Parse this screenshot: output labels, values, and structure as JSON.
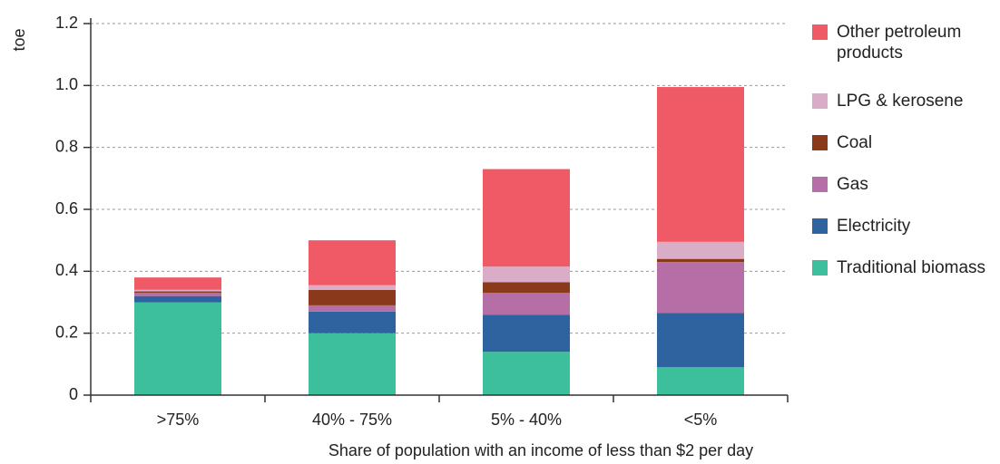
{
  "chart_data": {
    "type": "stacked_bar",
    "y_label": "toe",
    "x_label": "Share of population with an income of less than $2 per day",
    "categories": [
      ">75%",
      "40% - 75%",
      "5% - 40%",
      "<5%"
    ],
    "series": [
      {
        "name": "Traditional biomass",
        "color": "#3dbf9c",
        "values": [
          0.3,
          0.2,
          0.14,
          0.09
        ]
      },
      {
        "name": "Electricity",
        "color": "#2e63a0",
        "values": [
          0.02,
          0.07,
          0.12,
          0.175
        ]
      },
      {
        "name": "Gas",
        "color": "#b56fa6",
        "values": [
          0.01,
          0.02,
          0.07,
          0.165
        ]
      },
      {
        "name": "Coal",
        "color": "#8a3a1a",
        "values": [
          0.005,
          0.05,
          0.035,
          0.01
        ]
      },
      {
        "name": "LPG & kerosene",
        "color": "#d9adc8",
        "values": [
          0.005,
          0.015,
          0.05,
          0.055
        ]
      },
      {
        "name": "Other petroleum products",
        "color": "#f05a66",
        "values": [
          0.04,
          0.145,
          0.315,
          0.5
        ]
      }
    ],
    "ylim": [
      0,
      1.2
    ],
    "yticks": [
      0,
      0.2,
      0.4,
      0.6,
      0.8,
      {
        "value": 1,
        "label": "1.0"
      },
      1.2
    ],
    "grid": true
  }
}
